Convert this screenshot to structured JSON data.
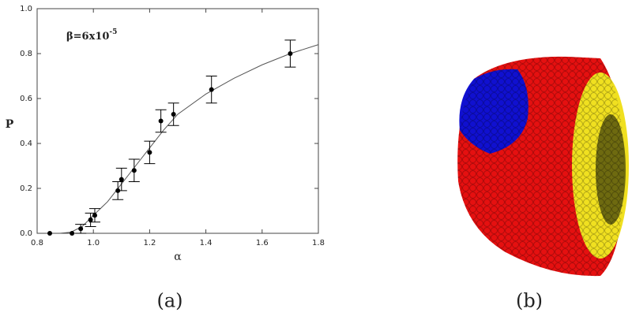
{
  "chart_data": {
    "type": "scatter",
    "xlabel": "α",
    "ylabel": "P",
    "annotation": {
      "base": "β=6x10",
      "exponent": "-5"
    },
    "xlim": [
      0.8,
      1.8
    ],
    "xticks": [
      0.8,
      {
        "value": 1,
        "label": "1.0"
      },
      1.2,
      1.4,
      1.6,
      1.8
    ],
    "ylim": [
      0,
      1
    ],
    "yticks": [
      {
        "value": 0,
        "label": "0.0"
      },
      0.2,
      0.4,
      0.6,
      0.8,
      {
        "value": 1,
        "label": "1.0"
      }
    ],
    "series": [
      {
        "color": "#000000",
        "x": [
          0.845,
          0.924,
          0.955,
          0.99,
          1.005,
          1.087,
          1.1,
          1.145,
          1.2,
          1.24,
          1.285,
          1.42,
          1.7
        ],
        "values": [
          0,
          0,
          0.02,
          0.06,
          0.08,
          0.19,
          0.24,
          0.28,
          0.36,
          0.5,
          0.53,
          0.64,
          0.8
        ],
        "errors": [
          0,
          0,
          0.02,
          0.03,
          0.03,
          0.04,
          0.05,
          0.05,
          0.05,
          0.05,
          0.05,
          0.06,
          0.06
        ]
      },
      {
        "color": "#555555",
        "x": [
          0.88,
          0.92,
          0.96,
          1.0,
          1.05,
          1.1,
          1.15,
          1.2,
          1.25,
          1.3,
          1.4,
          1.5,
          1.6,
          1.7,
          1.8
        ],
        "values": [
          0,
          0.005,
          0.03,
          0.08,
          0.14,
          0.22,
          0.3,
          0.38,
          0.46,
          0.53,
          0.62,
          0.69,
          0.75,
          0.8,
          0.84
        ]
      }
    ],
    "captions": [
      "(a)",
      "(b)"
    ]
  }
}
